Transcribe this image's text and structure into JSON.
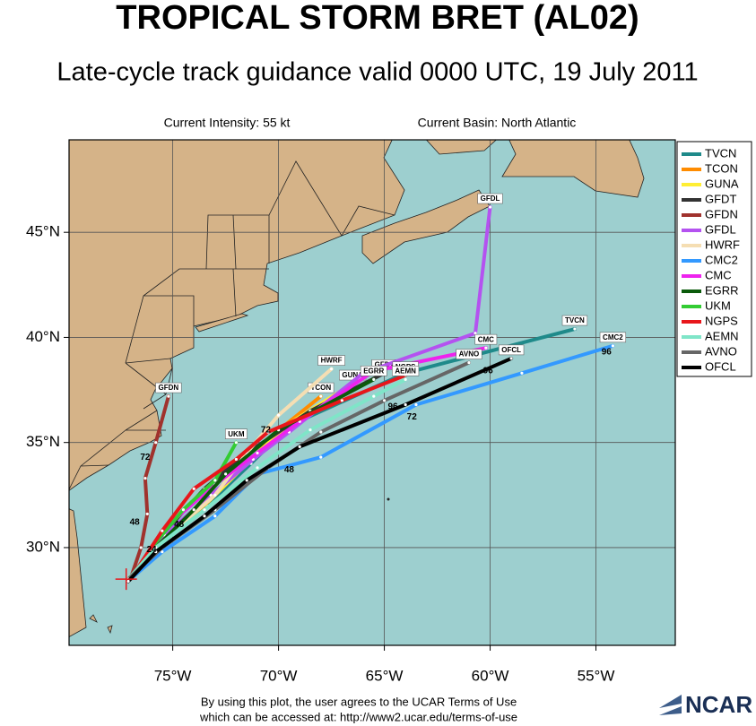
{
  "chart_data": {
    "type": "track-map",
    "title": "TROPICAL STORM BRET (AL02)",
    "subtitle": "Late-cycle track guidance valid 0000 UTC, 19 July 2011",
    "current_intensity": "Current Intensity: 55 kt",
    "current_basin": "Current Basin: North Atlantic",
    "footer": [
      "By using this plot, the user agrees to the UCAR Terms of Use",
      "which can be accessed at: http://www2.ucar.edu/terms-of-use"
    ],
    "logo": "NCAR",
    "xlim": [
      -79.9,
      -51.25
    ],
    "ylim": [
      25.35,
      49.4
    ],
    "xticks": [
      {
        "value": -75,
        "label": "75°W"
      },
      {
        "value": -70,
        "label": "70°W"
      },
      {
        "value": -65,
        "label": "65°W"
      },
      {
        "value": -60,
        "label": "60°W"
      },
      {
        "value": -55,
        "label": "55°W"
      }
    ],
    "yticks": [
      {
        "value": 30,
        "label": "30°N"
      },
      {
        "value": 35,
        "label": "35°N"
      },
      {
        "value": 40,
        "label": "40°N"
      },
      {
        "value": 45,
        "label": "45°N"
      }
    ],
    "grid": true,
    "legend": "upper right",
    "current_position": {
      "x": -77.2,
      "y": 28.5,
      "color": "#e8161b"
    },
    "series": [
      {
        "name": "TVCN",
        "color": "#1f8a8a",
        "x": [
          -77.1,
          -75.6,
          -73.4,
          -71.3,
          -69.5,
          -64.0,
          -56.0
        ],
        "values": [
          28.5,
          30.2,
          32.0,
          34.0,
          35.8,
          38.3,
          40.4
        ]
      },
      {
        "name": "TCON",
        "color": "#ff8c00",
        "x": [
          -77.1,
          -75.5,
          -73.3,
          -71.3,
          -69.6,
          -68.0
        ],
        "values": [
          28.5,
          30.3,
          32.2,
          34.2,
          35.9,
          37.2
        ]
      },
      {
        "name": "GUNA",
        "color": "#ffee33",
        "x": [
          -77.1,
          -75.5,
          -73.2,
          -71.2,
          -69.5,
          -66.5
        ],
        "values": [
          28.5,
          30.4,
          32.3,
          34.3,
          35.9,
          37.8
        ]
      },
      {
        "name": "GFDT",
        "color": "#333333",
        "x": [
          -77.0,
          -75.6,
          -73.5,
          -71.5,
          -68.5,
          -65.0
        ],
        "values": [
          28.5,
          30.5,
          32.8,
          34.5,
          36.5,
          38.3
        ]
      },
      {
        "name": "GFDN",
        "color": "#a0322d",
        "x": [
          -77.0,
          -76.5,
          -76.2,
          -76.3,
          -75.8,
          -75.2
        ],
        "values": [
          28.5,
          30.0,
          31.6,
          33.3,
          35.0,
          37.2
        ]
      },
      {
        "name": "GFDL",
        "color": "#b452f0",
        "x": [
          -77.0,
          -75.4,
          -73.2,
          -71.2,
          -69.5,
          -66.0,
          -60.7,
          -60.0
        ],
        "values": [
          28.5,
          30.6,
          32.5,
          34.2,
          35.5,
          38.3,
          40.2,
          46.2
        ]
      },
      {
        "name": "HWRF",
        "color": "#f5deb3",
        "x": [
          -77.0,
          -75.3,
          -73.0,
          -71.5,
          -70.0,
          -67.5
        ],
        "values": [
          28.5,
          30.5,
          32.5,
          34.5,
          36.3,
          38.5
        ]
      },
      {
        "name": "CMC2",
        "color": "#3399ff",
        "x": [
          -77.0,
          -75.5,
          -73.0,
          -71.0,
          -68.0,
          -63.5,
          -58.5,
          -54.2
        ],
        "values": [
          28.5,
          29.8,
          31.5,
          33.5,
          34.3,
          36.8,
          38.3,
          39.6
        ]
      },
      {
        "name": "CMC",
        "color": "#ee22ee",
        "x": [
          -77.0,
          -75.3,
          -73.0,
          -71.0,
          -69.0,
          -65.5,
          -60.2
        ],
        "values": [
          28.5,
          31.0,
          33.0,
          34.5,
          36.0,
          38.4,
          39.5
        ]
      },
      {
        "name": "EGRR",
        "color": "#0b5a0b",
        "x": [
          -77.0,
          -75.8,
          -74.0,
          -72.5,
          -70.0,
          -65.5
        ],
        "values": [
          28.5,
          30.0,
          31.8,
          33.5,
          35.6,
          38.0
        ]
      },
      {
        "name": "UKM",
        "color": "#33cc33",
        "x": [
          -77.0,
          -76.0,
          -74.5,
          -73.0,
          -72.0
        ],
        "values": [
          28.5,
          30.0,
          31.8,
          33.2,
          35.0
        ]
      },
      {
        "name": "NGPS",
        "color": "#e8161b",
        "x": [
          -77.0,
          -75.5,
          -74.0,
          -72.0,
          -70.5,
          -67.0,
          -64.0
        ],
        "values": [
          28.5,
          30.8,
          32.8,
          34.2,
          35.5,
          37.0,
          38.2
        ]
      },
      {
        "name": "AEMN",
        "color": "#7fe5c8",
        "x": [
          -77.1,
          -75.8,
          -73.5,
          -71.0,
          -68.5,
          -65.5,
          -64.0
        ],
        "values": [
          28.5,
          30.0,
          31.8,
          33.8,
          35.6,
          37.2,
          38.0
        ]
      },
      {
        "name": "AVNO",
        "color": "#666666",
        "x": [
          -77.1,
          -75.5,
          -73.0,
          -70.5,
          -68.0,
          -65.0,
          -61.0
        ],
        "values": [
          28.5,
          30.0,
          31.8,
          33.8,
          35.5,
          37.0,
          38.8
        ]
      },
      {
        "name": "OFCL",
        "color": "#000000",
        "x": [
          -77.1,
          -75.8,
          -73.5,
          -71.5,
          -69.0,
          -64.0,
          -59.0
        ],
        "values": [
          28.4,
          29.8,
          31.5,
          33.2,
          34.8,
          36.8,
          39.0
        ]
      }
    ],
    "annotations": [
      {
        "text": "24",
        "x": -76.0,
        "y": 29.9
      },
      {
        "text": "48",
        "x": -74.7,
        "y": 31.1
      },
      {
        "text": "72",
        "x": -70.6,
        "y": 35.6
      },
      {
        "text": "96",
        "x": -64.6,
        "y": 36.7
      },
      {
        "text": "48",
        "x": -76.8,
        "y": 31.2
      },
      {
        "text": "72",
        "x": -76.3,
        "y": 34.3
      },
      {
        "text": "48",
        "x": -69.5,
        "y": 33.7
      },
      {
        "text": "72",
        "x": -63.7,
        "y": 36.2
      },
      {
        "text": "96",
        "x": -60.1,
        "y": 38.4
      },
      {
        "text": "96",
        "x": -54.5,
        "y": 39.3
      }
    ]
  }
}
